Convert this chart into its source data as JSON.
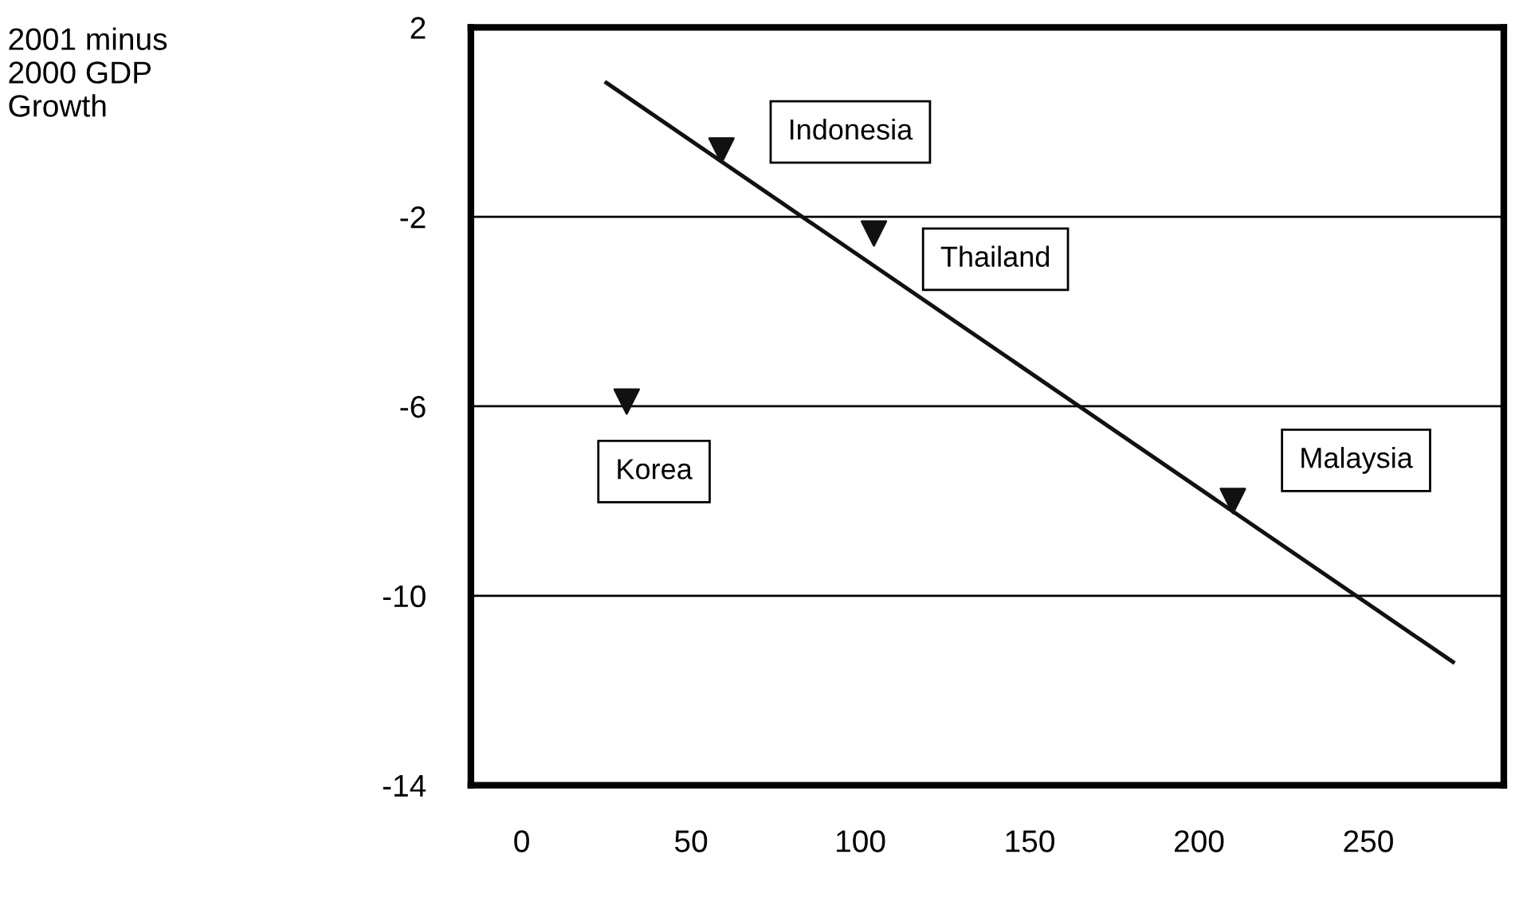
{
  "chart_data": {
    "type": "scatter",
    "xlim": [
      -15,
      290
    ],
    "ylim": [
      -14,
      2
    ],
    "xticks": [
      0,
      50,
      100,
      150,
      200,
      250
    ],
    "yticks": [
      2,
      -2,
      -6,
      -10,
      -14
    ],
    "grid": "y",
    "legend": false,
    "series": [
      {
        "color": "#111111",
        "marker": "triangle",
        "x": [
          59,
          104,
          31,
          210
        ],
        "values": [
          -0.6,
          -2.35,
          -5.9,
          -8.0
        ]
      },
      {
        "type": "line",
        "color": "#111111",
        "x": [
          25,
          275
        ],
        "values": [
          0.83,
          -11.4
        ]
      }
    ],
    "annotations": [
      "2001 minus\n2000 GDP\nGrowth",
      {
        "text": "Indonesia",
        "x": 59,
        "y": -0.6
      },
      {
        "text": "Thailand",
        "x": 104,
        "y": -2.35
      },
      {
        "text": "Korea",
        "x": 31,
        "y": -5.9
      },
      {
        "text": "Malaysia",
        "x": 210,
        "y": -8.0
      }
    ]
  }
}
